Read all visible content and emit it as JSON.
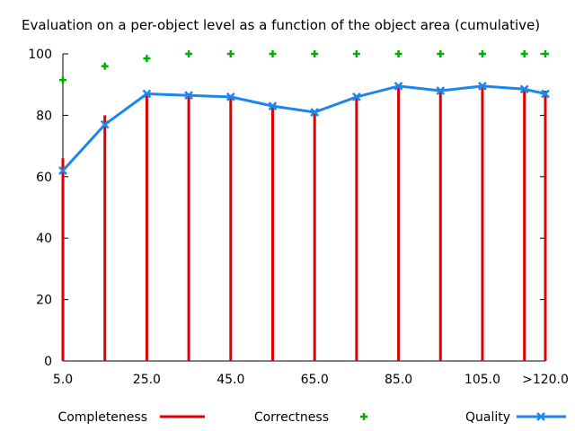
{
  "chart_data": {
    "type": "line",
    "title": "Evaluation on a per-object level as a function of the object area (cumulative)",
    "xlabel": "",
    "ylabel": "",
    "x": [
      5,
      15,
      25,
      35,
      45,
      55,
      65,
      75,
      85,
      95,
      105,
      115,
      120
    ],
    "x_tick_labels": [
      "5.0",
      "25.0",
      "45.0",
      "65.0",
      "85.0",
      "105.0",
      ">120.0"
    ],
    "x_tick_values": [
      5,
      25,
      45,
      65,
      85,
      105,
      120
    ],
    "y_tick_labels": [
      "0",
      "20",
      "40",
      "60",
      "80",
      "100"
    ],
    "y_tick_values": [
      0,
      20,
      40,
      60,
      80,
      100
    ],
    "xlim": [
      5,
      120
    ],
    "ylim": [
      0,
      100
    ],
    "legend_position": "bottom",
    "series": [
      {
        "name": "Completeness",
        "style": "impulses",
        "color": "#e00000",
        "values": [
          66,
          80,
          87,
          87,
          86,
          83,
          81,
          86,
          90,
          88,
          90,
          89,
          88
        ]
      },
      {
        "name": "Correctness",
        "style": "points",
        "color": "#00b000",
        "values": [
          91.5,
          96,
          98.5,
          100,
          100,
          100,
          100,
          100,
          100,
          100,
          100,
          100,
          100
        ]
      },
      {
        "name": "Quality",
        "style": "linespoints",
        "color": "#1c86ee",
        "values": [
          62,
          77,
          87,
          86.5,
          86,
          83,
          81,
          86,
          89.5,
          88,
          89.5,
          88.5,
          87
        ]
      }
    ]
  }
}
